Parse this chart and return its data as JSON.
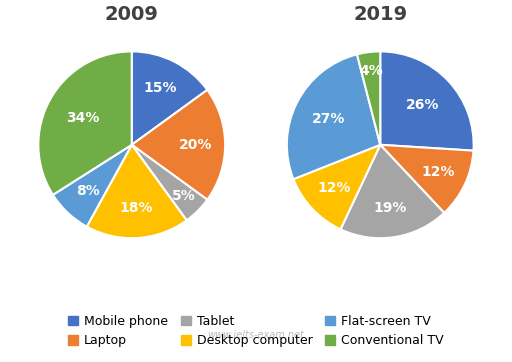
{
  "title_2009": "2009",
  "title_2019": "2019",
  "categories": [
    "Mobile phone",
    "Laptop",
    "Tablet",
    "Desktop computer",
    "Flat-screen TV",
    "Conventional TV"
  ],
  "colors": [
    "#4472C4",
    "#ED7D31",
    "#A5A5A5",
    "#FFC000",
    "#5B9BD5",
    "#70AD47"
  ],
  "values_2009": [
    15,
    20,
    5,
    18,
    8,
    34
  ],
  "values_2019": [
    26,
    12,
    19,
    12,
    27,
    4
  ],
  "labels_2009": [
    "15%",
    "20%",
    "5%",
    "18%",
    "8%",
    "34%"
  ],
  "labels_2019": [
    "26%",
    "12%",
    "19%",
    "12%",
    "27%",
    "4%"
  ],
  "watermark": "www.ielts-exam.net",
  "background_color": "#FFFFFF",
  "title_fontsize": 14,
  "title_fontweight": "bold",
  "label_fontsize": 10,
  "legend_fontsize": 9
}
